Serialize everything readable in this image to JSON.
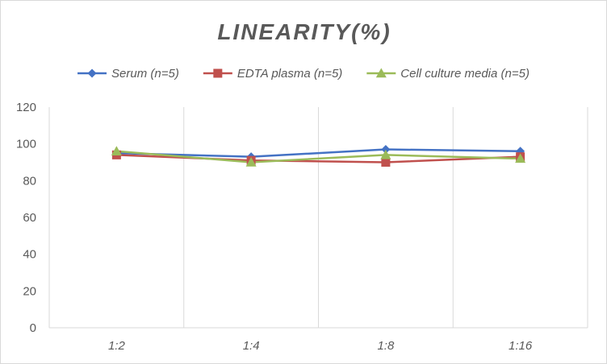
{
  "chart_data": {
    "type": "line",
    "title": "LINEARITY(%)",
    "categories": [
      "1:2",
      "1:4",
      "1:8",
      "1:16"
    ],
    "ylim": [
      0,
      120
    ],
    "yticks": [
      0,
      20,
      40,
      60,
      80,
      100,
      120
    ],
    "grid": "vertical category gridlines",
    "legend_position": "top",
    "series": [
      {
        "name": "Serum (n=5)",
        "values": [
          95,
          93,
          97,
          96
        ],
        "color": "#4472c4",
        "marker": "diamond"
      },
      {
        "name": "EDTA plasma (n=5)",
        "values": [
          94,
          91,
          90,
          93
        ],
        "color": "#c0504d",
        "marker": "square"
      },
      {
        "name": "Cell culture media (n=5)",
        "values": [
          96,
          90,
          94,
          92
        ],
        "color": "#9bbb59",
        "marker": "triangle"
      }
    ]
  }
}
